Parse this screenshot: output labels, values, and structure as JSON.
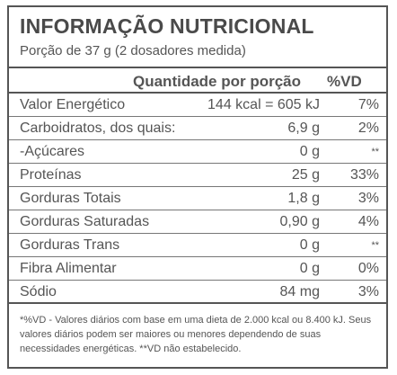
{
  "title": "INFORMAÇÃO NUTRICIONAL",
  "serving": "Porção de 37 g (2 dosadores medida)",
  "header": {
    "quantity": "Quantidade por porção",
    "dv": "%VD"
  },
  "rows": [
    {
      "name": "Valor Energético",
      "qty": "144 kcal = 605 kJ",
      "dv": "7%"
    },
    {
      "name": "Carboidratos, dos quais:",
      "qty": "6,9 g",
      "dv": "2%"
    },
    {
      "name": "-Açúcares",
      "qty": "0 g",
      "dv": "**"
    },
    {
      "name": "Proteínas",
      "qty": "25 g",
      "dv": "33%"
    },
    {
      "name": "Gorduras Totais",
      "qty": "1,8 g",
      "dv": "3%"
    },
    {
      "name": "Gorduras Saturadas",
      "qty": "0,90 g",
      "dv": "4%"
    },
    {
      "name": "Gorduras Trans",
      "qty": "0 g",
      "dv": "**"
    },
    {
      "name": "Fibra Alimentar",
      "qty": "0 g",
      "dv": "0%"
    },
    {
      "name": "Sódio",
      "qty": "84 mg",
      "dv": "3%"
    }
  ],
  "footnote": "*%VD - Valores diários com base em uma dieta de 2.000 kcal ou 8.400 kJ. Seus valores diários podem ser maiores ou menores dependendo de suas necessidades energéticas. **VD não estabelecido."
}
